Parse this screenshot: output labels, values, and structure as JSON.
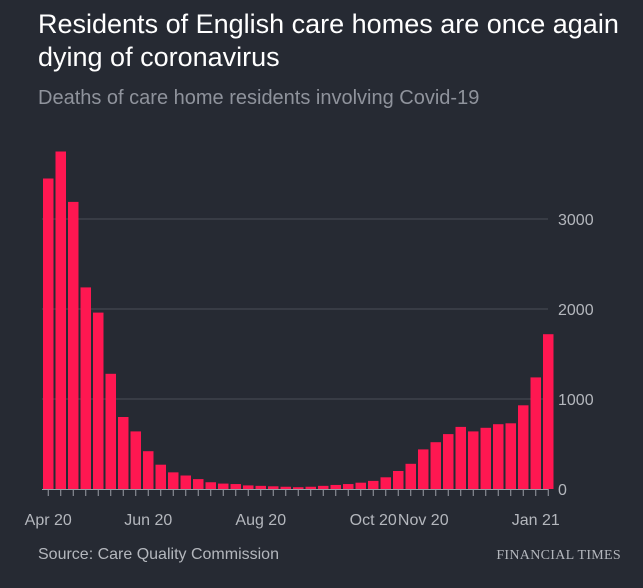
{
  "title": "Residents of English care homes are once again dying of coronavirus",
  "subtitle": "Deaths of care home residents involving Covid-19",
  "source": "Source: Care Quality Commission",
  "brand": "FINANCIAL TIMES",
  "colors": {
    "bar": "#ff1751",
    "background": "#262a33",
    "grid": "#4a4e57",
    "text": "#b4b7bd"
  },
  "chart_data": {
    "type": "bar",
    "title": "Residents of English care homes are once again dying of coronavirus",
    "subtitle": "Deaths of care home residents involving Covid-19",
    "xlabel": "",
    "ylabel": "",
    "ylim": [
      0,
      3800
    ],
    "yticks": [
      0,
      1000,
      2000,
      3000
    ],
    "ytick_labels": [
      "0",
      "1000",
      "2000",
      "3000"
    ],
    "x_tick_labels": [
      {
        "label": "Apr 20",
        "index": 0
      },
      {
        "label": "Jun 20",
        "index": 8
      },
      {
        "label": "Aug 20",
        "index": 17
      },
      {
        "label": "Oct 20",
        "index": 26
      },
      {
        "label": "Nov 20",
        "index": 30
      },
      {
        "label": "Jan 21",
        "index": 39
      }
    ],
    "grid": true,
    "values": [
      3450,
      3750,
      3190,
      2240,
      1960,
      1280,
      800,
      640,
      420,
      270,
      185,
      150,
      110,
      75,
      60,
      55,
      40,
      35,
      30,
      25,
      20,
      25,
      35,
      45,
      55,
      70,
      90,
      130,
      200,
      280,
      440,
      520,
      610,
      690,
      640,
      680,
      720,
      730,
      930,
      1240,
      1720
    ]
  }
}
